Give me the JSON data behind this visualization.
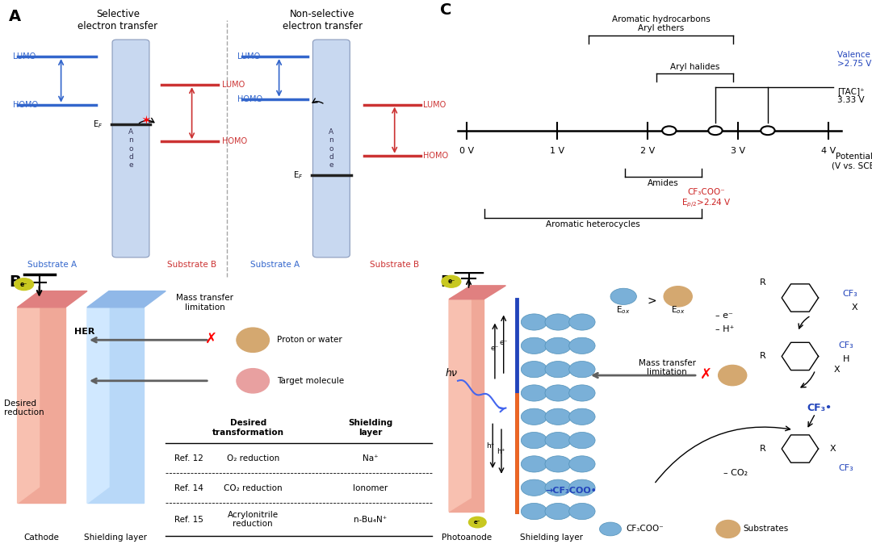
{
  "bg_color": "#ffffff",
  "panel_A": {
    "blue_color": "#3366cc",
    "red_color": "#cc3333",
    "anode_color": "#c8d8f0"
  },
  "panel_B": {
    "ball_tan_color": "#d4a870",
    "ball_pink_color": "#e8a0a0",
    "ball_yellow_color": "#c8c820",
    "table_rows": [
      [
        "Ref. 12",
        "O₂ reduction",
        "Na⁺"
      ],
      [
        "Ref. 14",
        "CO₂ reduction",
        "Ionomer"
      ],
      [
        "Ref. 15",
        "Acrylonitrile\nreduction",
        "n-Bu₄N⁺"
      ]
    ]
  },
  "panel_C": {
    "blue_color": "#2244bb",
    "red_color": "#cc2222",
    "open_circles": [
      2.24,
      2.75,
      3.33
    ]
  },
  "panel_D": {
    "sphere_blue": "#7ab0d8",
    "blue_color": "#2244bb",
    "tan_color": "#d4a870",
    "yellow_color": "#c8c820"
  }
}
